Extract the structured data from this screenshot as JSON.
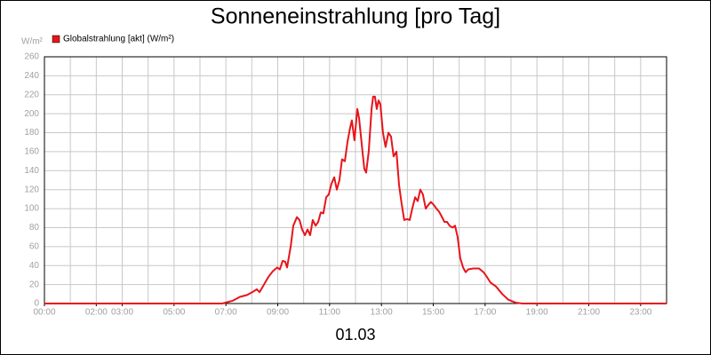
{
  "chart_data": {
    "type": "line",
    "title": "Sonneneinstrahlung [pro Tag]",
    "y_unit": "W/m²",
    "x_label": "01.03",
    "xlim": [
      0,
      24
    ],
    "ylim": [
      0,
      260
    ],
    "xticks": [
      {
        "value": 0,
        "label": "00:00"
      },
      {
        "value": 2,
        "label": "02:00"
      },
      {
        "value": 3,
        "label": "03:00"
      },
      {
        "value": 5,
        "label": "05:00"
      },
      {
        "value": 7,
        "label": "07:00"
      },
      {
        "value": 9,
        "label": "09:00"
      },
      {
        "value": 11,
        "label": "11:00"
      },
      {
        "value": 13,
        "label": "13:00"
      },
      {
        "value": 15,
        "label": "15:00"
      },
      {
        "value": 17,
        "label": "17:00"
      },
      {
        "value": 19,
        "label": "19:00"
      },
      {
        "value": 21,
        "label": "21:00"
      },
      {
        "value": 23,
        "label": "23:00"
      }
    ],
    "yticks": [
      0,
      20,
      40,
      60,
      80,
      100,
      120,
      140,
      160,
      180,
      200,
      220,
      240,
      260
    ],
    "xgrid_step": 1,
    "grid": true,
    "legend": "top-left",
    "x": [
      0,
      6.86,
      7.27,
      7.54,
      7.82,
      8.02,
      8.19,
      8.3,
      8.47,
      8.64,
      8.81,
      8.98,
      9.08,
      9.19,
      9.29,
      9.36,
      9.5,
      9.6,
      9.74,
      9.84,
      9.94,
      10.05,
      10.15,
      10.25,
      10.35,
      10.46,
      10.56,
      10.66,
      10.76,
      10.87,
      10.97,
      11.07,
      11.18,
      11.28,
      11.38,
      11.48,
      11.59,
      11.69,
      11.79,
      11.86,
      11.96,
      12.07,
      12.14,
      12.24,
      12.34,
      12.41,
      12.51,
      12.62,
      12.68,
      12.75,
      12.82,
      12.89,
      12.96,
      13.06,
      13.16,
      13.27,
      13.37,
      13.47,
      13.58,
      13.68,
      13.78,
      13.88,
      13.99,
      14.09,
      14.19,
      14.3,
      14.4,
      14.5,
      14.6,
      14.71,
      14.81,
      14.91,
      15.02,
      15.12,
      15.22,
      15.32,
      15.43,
      15.53,
      15.63,
      15.74,
      15.84,
      15.94,
      16.04,
      16.15,
      16.25,
      16.35,
      16.56,
      16.76,
      16.94,
      17.07,
      17.21,
      17.42,
      17.66,
      17.9,
      18.17,
      18.44,
      24
    ],
    "series": [
      {
        "name": "Globalstrahlung [akt] (W/m²)",
        "color": "#e8141a",
        "values": [
          0,
          0,
          3,
          7,
          9,
          12,
          15,
          12,
          20,
          28,
          34,
          38,
          36,
          45,
          44,
          38,
          60,
          82,
          91,
          88,
          78,
          72,
          78,
          72,
          88,
          82,
          86,
          96,
          95,
          112,
          115,
          126,
          133,
          120,
          130,
          152,
          150,
          170,
          185,
          193,
          172,
          205,
          195,
          168,
          142,
          138,
          160,
          205,
          218,
          218,
          205,
          214,
          210,
          180,
          165,
          180,
          176,
          155,
          160,
          125,
          105,
          88,
          89,
          88,
          100,
          112,
          108,
          120,
          115,
          100,
          104,
          107,
          104,
          100,
          97,
          92,
          86,
          86,
          82,
          80,
          82,
          70,
          48,
          38,
          33,
          36,
          37,
          37,
          33,
          28,
          22,
          18,
          10,
          4,
          1,
          0,
          0
        ]
      }
    ]
  }
}
